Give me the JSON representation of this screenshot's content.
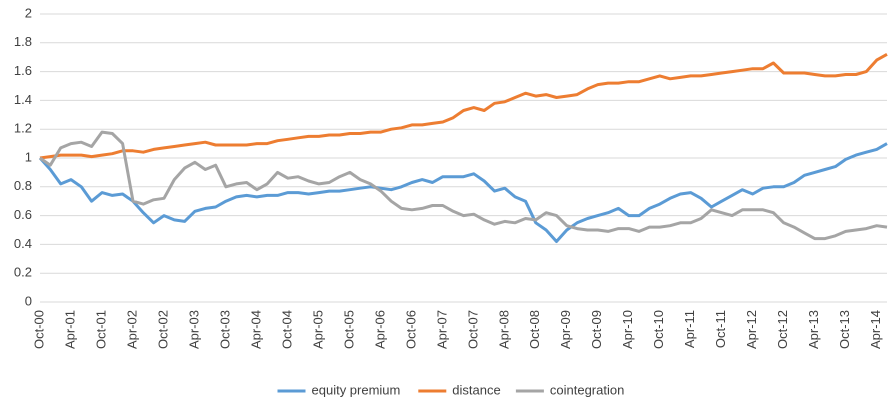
{
  "chart_data": {
    "type": "line",
    "categories": [
      "Oct-00",
      null,
      null,
      "Apr-01",
      null,
      null,
      "Oct-01",
      null,
      null,
      "Apr-02",
      null,
      null,
      "Oct-02",
      null,
      null,
      "Apr-03",
      null,
      null,
      "Oct-03",
      null,
      null,
      "Apr-04",
      null,
      null,
      "Oct-04",
      null,
      null,
      "Apr-05",
      null,
      null,
      "Oct-05",
      null,
      null,
      "Apr-06",
      null,
      null,
      "Oct-06",
      null,
      null,
      "Apr-07",
      null,
      null,
      "Oct-07",
      null,
      null,
      "Apr-08",
      null,
      null,
      "Oct-08",
      null,
      null,
      "Apr-09",
      null,
      null,
      "Oct-09",
      null,
      null,
      "Apr-10",
      null,
      null,
      "Oct-10",
      null,
      null,
      "Apr-11",
      null,
      null,
      "Oct-11",
      null,
      null,
      "Apr-12",
      null,
      null,
      "Oct-12",
      null,
      null,
      "Apr-13",
      null,
      null,
      "Oct-13",
      null,
      null,
      "Apr-14",
      null
    ],
    "series": [
      {
        "name": "equity premium",
        "color": "#5b9bd5",
        "values": [
          1.0,
          0.92,
          0.82,
          0.85,
          0.8,
          0.7,
          0.76,
          0.74,
          0.75,
          0.7,
          0.62,
          0.55,
          0.6,
          0.57,
          0.56,
          0.63,
          0.65,
          0.66,
          0.7,
          0.73,
          0.74,
          0.73,
          0.74,
          0.74,
          0.76,
          0.76,
          0.75,
          0.76,
          0.77,
          0.77,
          0.78,
          0.79,
          0.8,
          0.79,
          0.78,
          0.8,
          0.83,
          0.85,
          0.83,
          0.87,
          0.87,
          0.87,
          0.89,
          0.84,
          0.77,
          0.79,
          0.73,
          0.7,
          0.55,
          0.5,
          0.42,
          0.5,
          0.55,
          0.58,
          0.6,
          0.62,
          0.65,
          0.6,
          0.6,
          0.65,
          0.68,
          0.72,
          0.75,
          0.76,
          0.72,
          0.66,
          0.7,
          0.74,
          0.78,
          0.75,
          0.79,
          0.8,
          0.8,
          0.83,
          0.88,
          0.9,
          0.92,
          0.94,
          0.99,
          1.02,
          1.04,
          1.06,
          1.1
        ]
      },
      {
        "name": "distance",
        "color": "#ed7d31",
        "values": [
          1.0,
          1.01,
          1.02,
          1.02,
          1.02,
          1.01,
          1.02,
          1.03,
          1.05,
          1.05,
          1.04,
          1.06,
          1.07,
          1.08,
          1.09,
          1.1,
          1.11,
          1.09,
          1.09,
          1.09,
          1.09,
          1.1,
          1.1,
          1.12,
          1.13,
          1.14,
          1.15,
          1.15,
          1.16,
          1.16,
          1.17,
          1.17,
          1.18,
          1.18,
          1.2,
          1.21,
          1.23,
          1.23,
          1.24,
          1.25,
          1.28,
          1.33,
          1.35,
          1.33,
          1.38,
          1.39,
          1.42,
          1.45,
          1.43,
          1.44,
          1.42,
          1.43,
          1.44,
          1.48,
          1.51,
          1.52,
          1.52,
          1.53,
          1.53,
          1.55,
          1.57,
          1.55,
          1.56,
          1.57,
          1.57,
          1.58,
          1.59,
          1.6,
          1.61,
          1.62,
          1.62,
          1.66,
          1.59,
          1.59,
          1.59,
          1.58,
          1.57,
          1.57,
          1.58,
          1.58,
          1.6,
          1.68,
          1.72
        ]
      },
      {
        "name": "cointegration",
        "color": "#a5a5a5",
        "values": [
          1.0,
          0.95,
          1.07,
          1.1,
          1.11,
          1.08,
          1.18,
          1.17,
          1.1,
          0.7,
          0.68,
          0.71,
          0.72,
          0.85,
          0.93,
          0.97,
          0.92,
          0.95,
          0.8,
          0.82,
          0.83,
          0.78,
          0.82,
          0.9,
          0.86,
          0.87,
          0.84,
          0.82,
          0.83,
          0.87,
          0.9,
          0.85,
          0.82,
          0.77,
          0.7,
          0.65,
          0.64,
          0.65,
          0.67,
          0.67,
          0.63,
          0.6,
          0.61,
          0.57,
          0.54,
          0.56,
          0.55,
          0.58,
          0.57,
          0.62,
          0.6,
          0.53,
          0.51,
          0.5,
          0.5,
          0.49,
          0.51,
          0.51,
          0.49,
          0.52,
          0.52,
          0.53,
          0.55,
          0.55,
          0.58,
          0.64,
          0.62,
          0.6,
          0.64,
          0.64,
          0.64,
          0.62,
          0.55,
          0.52,
          0.48,
          0.44,
          0.44,
          0.46,
          0.49,
          0.5,
          0.51,
          0.53,
          0.52
        ]
      }
    ],
    "ylim": [
      0,
      2
    ],
    "yticks": [
      0,
      0.2,
      0.4,
      0.6,
      0.8,
      1,
      1.2,
      1.4,
      1.6,
      1.8,
      2
    ],
    "grid": true,
    "legend": "bottom"
  }
}
